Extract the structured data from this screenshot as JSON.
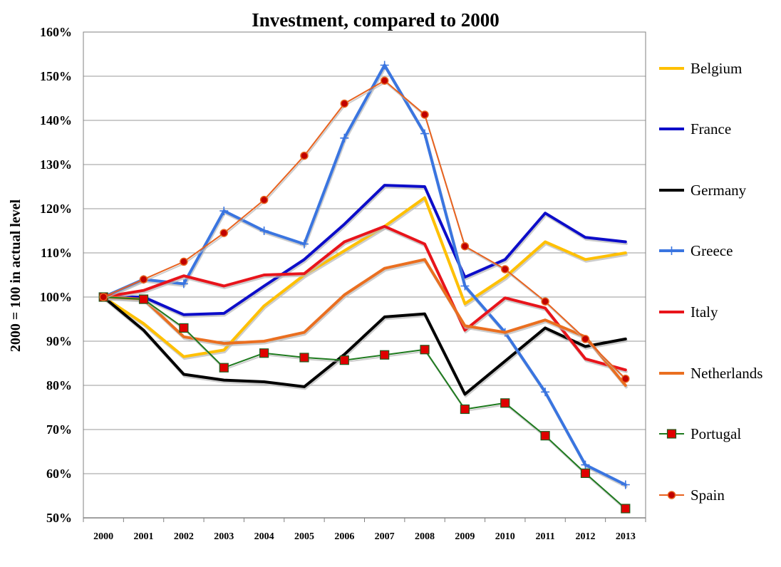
{
  "chart_data": {
    "type": "line",
    "title": "Investment, compared to 2000",
    "xlabel": "",
    "ylabel": "2000 = 100 in actual level",
    "ylim": [
      50,
      160
    ],
    "yticks": [
      "50%",
      "60%",
      "70%",
      "80%",
      "90%",
      "100%",
      "110%",
      "120%",
      "130%",
      "140%",
      "150%",
      "160%"
    ],
    "x": [
      "2000",
      "2001",
      "2002",
      "2003",
      "2004",
      "2005",
      "2006",
      "2007",
      "2008",
      "2009",
      "2010",
      "2011",
      "2012",
      "2013"
    ],
    "grid": true,
    "legend_position": "right",
    "series": [
      {
        "name": "Belgium",
        "color": "#FFC000",
        "marker": "none",
        "values": [
          100,
          94,
          86.5,
          88,
          98,
          105,
          110.5,
          116,
          122.5,
          98.5,
          104.5,
          112.5,
          108.5,
          110
        ]
      },
      {
        "name": "France",
        "color": "#0D0DC9",
        "marker": "none",
        "values": [
          100,
          100,
          96,
          96.3,
          102.5,
          108.5,
          116.5,
          125.3,
          125,
          104.5,
          108.5,
          119,
          113.5,
          112.5
        ]
      },
      {
        "name": "Germany",
        "color": "#000000",
        "marker": "none",
        "values": [
          100,
          92.5,
          82.5,
          81.2,
          80.8,
          79.7,
          87,
          95.5,
          96.2,
          78,
          85.5,
          93,
          88.8,
          90.5
        ]
      },
      {
        "name": "Greece",
        "color": "#3A75E0",
        "marker": "plus",
        "values": [
          100,
          104,
          103,
          119.5,
          115,
          112,
          136,
          152.5,
          137,
          102.5,
          92,
          78.5,
          62,
          57.5
        ]
      },
      {
        "name": "Italy",
        "color": "#E8141B",
        "marker": "none",
        "values": [
          100,
          101.5,
          104.8,
          102.5,
          105,
          105.3,
          112.5,
          116,
          112,
          92.5,
          99.8,
          97.5,
          86,
          83.5
        ]
      },
      {
        "name": "Netherlands",
        "color": "#EA6F20",
        "marker": "none",
        "values": [
          100,
          99.5,
          91,
          89.5,
          90,
          92,
          100.5,
          106.5,
          108.5,
          93.5,
          92,
          94.8,
          91,
          80
        ]
      },
      {
        "name": "Portugal",
        "color": "#1E7A1E",
        "marker": "square",
        "values": [
          100,
          99.5,
          93,
          84,
          87.3,
          86.3,
          85.7,
          86.9,
          88.1,
          74.6,
          76,
          68.6,
          60.1,
          52.1
        ]
      },
      {
        "name": "Spain",
        "color": "#E8621E",
        "marker": "circle",
        "values": [
          100,
          104,
          108,
          114.5,
          122,
          132,
          143.8,
          149,
          141.3,
          111.5,
          106.3,
          99,
          90.5,
          81.5
        ]
      }
    ]
  }
}
